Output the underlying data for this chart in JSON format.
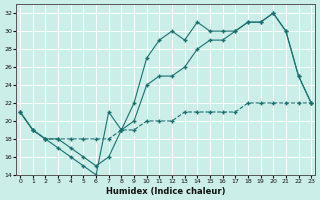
{
  "xlabel": "Humidex (Indice chaleur)",
  "background_color": "#cceee8",
  "grid_color": "#ffffff",
  "line_color": "#1a7070",
  "xlim": [
    0,
    23
  ],
  "ylim": [
    14,
    33
  ],
  "yticks": [
    14,
    16,
    18,
    20,
    22,
    24,
    26,
    28,
    30,
    32
  ],
  "xticks": [
    0,
    1,
    2,
    3,
    4,
    5,
    6,
    7,
    8,
    9,
    10,
    11,
    12,
    13,
    14,
    15,
    16,
    17,
    18,
    19,
    20,
    21,
    22,
    23
  ],
  "series1_x": [
    0,
    1,
    2,
    3,
    4,
    5,
    6,
    7,
    8,
    9,
    10,
    11,
    12,
    13,
    14,
    15,
    16,
    17,
    18,
    19,
    20,
    21,
    22,
    23
  ],
  "series1_y": [
    21,
    19,
    18,
    17,
    16,
    15,
    14,
    21,
    19,
    22,
    27,
    29,
    30,
    29,
    31,
    30,
    30,
    30,
    31,
    31,
    32,
    30,
    25,
    22
  ],
  "series2_x": [
    0,
    1,
    2,
    3,
    4,
    5,
    6,
    7,
    8,
    9,
    10,
    11,
    12,
    13,
    14,
    15,
    16,
    17,
    18,
    19,
    20,
    21,
    22,
    23
  ],
  "series2_y": [
    21,
    19,
    18,
    18,
    17,
    16,
    15,
    16,
    19,
    20,
    24,
    25,
    25,
    26,
    28,
    29,
    29,
    30,
    31,
    31,
    32,
    30,
    25,
    22
  ],
  "series3_x": [
    0,
    1,
    2,
    3,
    4,
    5,
    6,
    7,
    8,
    9,
    10,
    11,
    12,
    13,
    14,
    15,
    16,
    17,
    18,
    19,
    20,
    21,
    22,
    23
  ],
  "series3_y": [
    21,
    19,
    18,
    18,
    18,
    18,
    18,
    18,
    19,
    19,
    20,
    20,
    20,
    21,
    21,
    21,
    21,
    21,
    22,
    22,
    22,
    22,
    22,
    22
  ]
}
